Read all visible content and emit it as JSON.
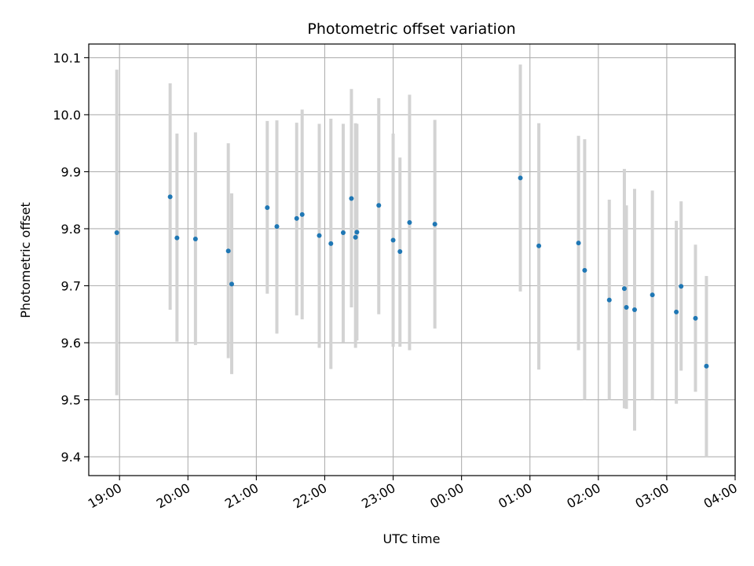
{
  "chart_data": {
    "type": "scatter",
    "title": "Photometric offset variation",
    "xlabel": "UTC time",
    "ylabel": "Photometric offset",
    "x_unit": "UTC hour (hours after 00:00 on the first night; values above 24 fall after midnight)",
    "xlim": [
      18.55,
      28.0
    ],
    "ylim": [
      9.367,
      10.124
    ],
    "x_ticks": [
      {
        "value": 19,
        "label": "19:00"
      },
      {
        "value": 20,
        "label": "20:00"
      },
      {
        "value": 21,
        "label": "21:00"
      },
      {
        "value": 22,
        "label": "22:00"
      },
      {
        "value": 23,
        "label": "23:00"
      },
      {
        "value": 24,
        "label": "00:00"
      },
      {
        "value": 25,
        "label": "01:00"
      },
      {
        "value": 26,
        "label": "02:00"
      },
      {
        "value": 27,
        "label": "03:00"
      },
      {
        "value": 28,
        "label": "04:00"
      }
    ],
    "y_ticks": [
      {
        "value": 9.4,
        "label": "9.4"
      },
      {
        "value": 9.5,
        "label": "9.5"
      },
      {
        "value": 9.6,
        "label": "9.6"
      },
      {
        "value": 9.7,
        "label": "9.7"
      },
      {
        "value": 9.8,
        "label": "9.8"
      },
      {
        "value": 9.9,
        "label": "9.9"
      },
      {
        "value": 10.0,
        "label": "10.0"
      },
      {
        "value": 10.1,
        "label": "10.1"
      }
    ],
    "grid": true,
    "marker_color": "#1f77b4",
    "errorbar_color": "#d3d3d3",
    "points": [
      {
        "x": 18.96,
        "y": 9.793,
        "ylo": 9.508,
        "yhi": 10.079
      },
      {
        "x": 19.74,
        "y": 9.856,
        "ylo": 9.658,
        "yhi": 10.055
      },
      {
        "x": 19.84,
        "y": 9.784,
        "ylo": 9.602,
        "yhi": 9.967
      },
      {
        "x": 20.11,
        "y": 9.782,
        "ylo": 9.596,
        "yhi": 9.969
      },
      {
        "x": 20.59,
        "y": 9.761,
        "ylo": 9.573,
        "yhi": 9.95
      },
      {
        "x": 20.64,
        "y": 9.703,
        "ylo": 9.545,
        "yhi": 9.862
      },
      {
        "x": 21.16,
        "y": 9.837,
        "ylo": 9.686,
        "yhi": 9.989
      },
      {
        "x": 21.3,
        "y": 9.804,
        "ylo": 9.616,
        "yhi": 9.99
      },
      {
        "x": 21.59,
        "y": 9.818,
        "ylo": 9.648,
        "yhi": 9.986
      },
      {
        "x": 21.67,
        "y": 9.825,
        "ylo": 9.641,
        "yhi": 10.009
      },
      {
        "x": 21.92,
        "y": 9.788,
        "ylo": 9.591,
        "yhi": 9.984
      },
      {
        "x": 22.09,
        "y": 9.774,
        "ylo": 9.554,
        "yhi": 9.993
      },
      {
        "x": 22.27,
        "y": 9.793,
        "ylo": 9.601,
        "yhi": 9.984
      },
      {
        "x": 22.39,
        "y": 9.853,
        "ylo": 9.662,
        "yhi": 10.045
      },
      {
        "x": 22.45,
        "y": 9.785,
        "ylo": 9.591,
        "yhi": 9.985
      },
      {
        "x": 22.47,
        "y": 9.794,
        "ylo": 9.604,
        "yhi": 9.984
      },
      {
        "x": 22.79,
        "y": 9.841,
        "ylo": 9.65,
        "yhi": 10.029
      },
      {
        "x": 23.0,
        "y": 9.78,
        "ylo": 9.593,
        "yhi": 9.967
      },
      {
        "x": 23.1,
        "y": 9.76,
        "ylo": 9.593,
        "yhi": 9.925
      },
      {
        "x": 23.24,
        "y": 9.811,
        "ylo": 9.587,
        "yhi": 10.035
      },
      {
        "x": 23.61,
        "y": 9.808,
        "ylo": 9.625,
        "yhi": 9.991
      },
      {
        "x": 24.86,
        "y": 9.889,
        "ylo": 9.69,
        "yhi": 10.088
      },
      {
        "x": 25.13,
        "y": 9.77,
        "ylo": 9.553,
        "yhi": 9.985
      },
      {
        "x": 25.71,
        "y": 9.775,
        "ylo": 9.587,
        "yhi": 9.963
      },
      {
        "x": 25.8,
        "y": 9.727,
        "ylo": 9.5,
        "yhi": 9.957
      },
      {
        "x": 26.16,
        "y": 9.675,
        "ylo": 9.5,
        "yhi": 9.851
      },
      {
        "x": 26.38,
        "y": 9.695,
        "ylo": 9.485,
        "yhi": 9.905
      },
      {
        "x": 26.41,
        "y": 9.662,
        "ylo": 9.484,
        "yhi": 9.841
      },
      {
        "x": 26.53,
        "y": 9.658,
        "ylo": 9.446,
        "yhi": 9.87
      },
      {
        "x": 26.79,
        "y": 9.684,
        "ylo": 9.5,
        "yhi": 9.867
      },
      {
        "x": 27.14,
        "y": 9.654,
        "ylo": 9.493,
        "yhi": 9.814
      },
      {
        "x": 27.21,
        "y": 9.699,
        "ylo": 9.551,
        "yhi": 9.848
      },
      {
        "x": 27.42,
        "y": 9.643,
        "ylo": 9.514,
        "yhi": 9.772
      },
      {
        "x": 27.58,
        "y": 9.559,
        "ylo": 9.4,
        "yhi": 9.717
      }
    ]
  }
}
